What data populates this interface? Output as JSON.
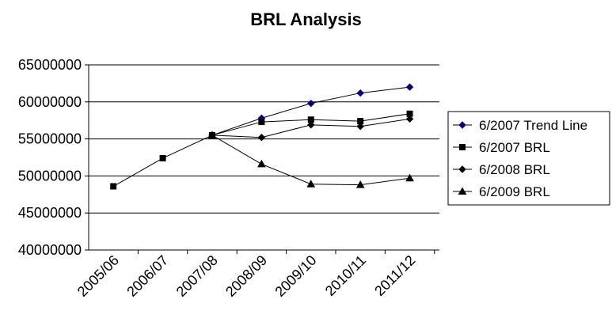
{
  "chart_data": {
    "type": "line",
    "title": "BRL Analysis",
    "xlabel": "",
    "ylabel": "",
    "categories": [
      "2005/06",
      "2006/07",
      "2007/08",
      "2008/09",
      "2009/10",
      "2010/11",
      "2011/12"
    ],
    "ylim": [
      40000000,
      65000000
    ],
    "yticks": [
      "40000000",
      "45000000",
      "50000000",
      "55000000",
      "60000000",
      "65000000"
    ],
    "yticks_values": [
      40000000,
      45000000,
      50000000,
      55000000,
      60000000,
      65000000
    ],
    "grid": true,
    "legend_position": "right",
    "series": [
      {
        "name": "6/2007 Trend Line",
        "marker": "diamond",
        "color": "#000080",
        "values": [
          null,
          null,
          55500000,
          57800000,
          59800000,
          61200000,
          62000000
        ]
      },
      {
        "name": "6/2007 BRL",
        "marker": "square",
        "color": "#000000",
        "values": [
          48600000,
          52400000,
          55500000,
          57300000,
          57600000,
          57400000,
          58400000
        ]
      },
      {
        "name": "6/2008 BRL",
        "marker": "diamond",
        "color": "#000000",
        "values": [
          null,
          null,
          55500000,
          55200000,
          56900000,
          56700000,
          57700000
        ]
      },
      {
        "name": "6/2009 BRL",
        "marker": "triangle",
        "color": "#000000",
        "values": [
          null,
          null,
          55500000,
          51600000,
          48900000,
          48800000,
          49700000
        ]
      }
    ]
  }
}
